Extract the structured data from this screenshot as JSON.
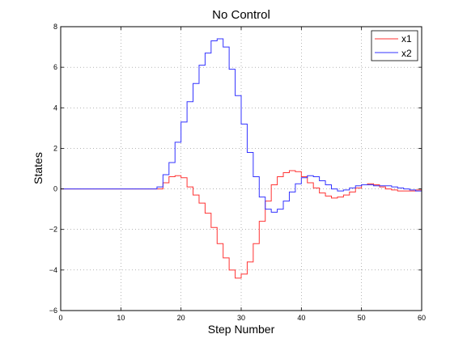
{
  "chart_data": {
    "type": "line",
    "title": "No Control",
    "xlabel": "Step Number",
    "ylabel": "States",
    "xlim": [
      0,
      60
    ],
    "ylim": [
      -6,
      8
    ],
    "xticks": [
      0,
      10,
      20,
      30,
      40,
      50,
      60
    ],
    "yticks": [
      -6,
      -4,
      -2,
      0,
      2,
      4,
      6,
      8
    ],
    "grid": true,
    "legend_position": "top-right",
    "step": true,
    "series": [
      {
        "name": "x1",
        "color": "#ff3333",
        "x": [
          0,
          1,
          2,
          3,
          4,
          5,
          6,
          7,
          8,
          9,
          10,
          11,
          12,
          13,
          14,
          15,
          16,
          17,
          18,
          19,
          20,
          21,
          22,
          23,
          24,
          25,
          26,
          27,
          28,
          29,
          30,
          31,
          32,
          33,
          34,
          35,
          36,
          37,
          38,
          39,
          40,
          41,
          42,
          43,
          44,
          45,
          46,
          47,
          48,
          49,
          50,
          51,
          52,
          53,
          54,
          55,
          56,
          57,
          58,
          59,
          60
        ],
        "values": [
          0,
          0,
          0,
          0,
          0,
          0,
          0,
          0,
          0,
          0,
          0,
          0,
          0,
          0,
          0,
          0,
          0,
          0.3,
          0.6,
          0.65,
          0.55,
          0.1,
          -0.3,
          -0.7,
          -1.2,
          -1.9,
          -2.7,
          -3.4,
          -4.0,
          -4.4,
          -4.2,
          -3.6,
          -2.7,
          -1.6,
          -0.6,
          0.2,
          0.6,
          0.8,
          0.9,
          0.85,
          0.6,
          0.3,
          0.05,
          -0.2,
          -0.35,
          -0.45,
          -0.4,
          -0.3,
          -0.15,
          0.05,
          0.2,
          0.25,
          0.2,
          0.1,
          0.0,
          -0.05,
          -0.1,
          -0.1,
          -0.1,
          -0.05,
          -0.05
        ]
      },
      {
        "name": "x2",
        "color": "#3333ff",
        "x": [
          0,
          1,
          2,
          3,
          4,
          5,
          6,
          7,
          8,
          9,
          10,
          11,
          12,
          13,
          14,
          15,
          16,
          17,
          18,
          19,
          20,
          21,
          22,
          23,
          24,
          25,
          26,
          27,
          28,
          29,
          30,
          31,
          32,
          33,
          34,
          35,
          36,
          37,
          38,
          39,
          40,
          41,
          42,
          43,
          44,
          45,
          46,
          47,
          48,
          49,
          50,
          51,
          52,
          53,
          54,
          55,
          56,
          57,
          58,
          59,
          60
        ],
        "values": [
          0,
          0,
          0,
          0,
          0,
          0,
          0,
          0,
          0,
          0,
          0,
          0,
          0,
          0,
          0,
          0,
          0.1,
          0.7,
          1.3,
          2.3,
          3.3,
          4.3,
          5.2,
          6.1,
          6.7,
          7.3,
          7.4,
          7.0,
          5.9,
          4.6,
          3.2,
          1.8,
          0.6,
          -0.4,
          -1.0,
          -1.15,
          -1.0,
          -0.6,
          -0.15,
          0.25,
          0.55,
          0.65,
          0.6,
          0.4,
          0.2,
          0.0,
          -0.1,
          -0.05,
          0.05,
          0.15,
          0.2,
          0.2,
          0.15,
          0.15,
          0.15,
          0.1,
          0.05,
          0.0,
          -0.05,
          -0.1,
          -0.1
        ]
      }
    ]
  }
}
